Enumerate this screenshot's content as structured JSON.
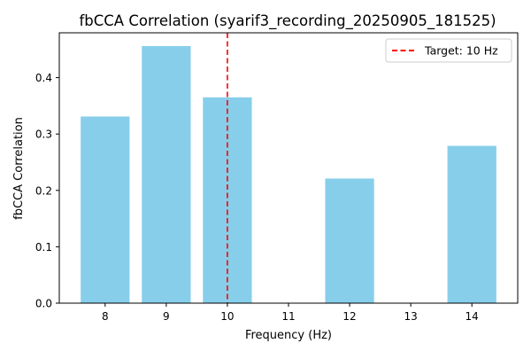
{
  "chart_data": {
    "type": "bar",
    "title": "fbCCA Correlation (syarif3_recording_20250905_181525)",
    "xlabel": "Frequency (Hz)",
    "ylabel": "fbCCA Correlation",
    "x_ticks": [
      8,
      9,
      10,
      11,
      12,
      13,
      14
    ],
    "y_ticks": [
      "0.0",
      "0.1",
      "0.2",
      "0.3",
      "0.4"
    ],
    "xlim": [
      7.25,
      14.75
    ],
    "ylim": [
      0,
      0.4795
    ],
    "bars": [
      {
        "x": 8,
        "value": 0.331
      },
      {
        "x": 9,
        "value": 0.456
      },
      {
        "x": 10,
        "value": 0.365
      },
      {
        "x": 12,
        "value": 0.221
      },
      {
        "x": 14,
        "value": 0.279
      }
    ],
    "bar_color": "#87ceeb",
    "target": {
      "x": 10,
      "label": "Target: 10 Hz",
      "color": "#ff0000",
      "style": "dashed"
    },
    "legend_position": "top-right",
    "grid": false
  }
}
